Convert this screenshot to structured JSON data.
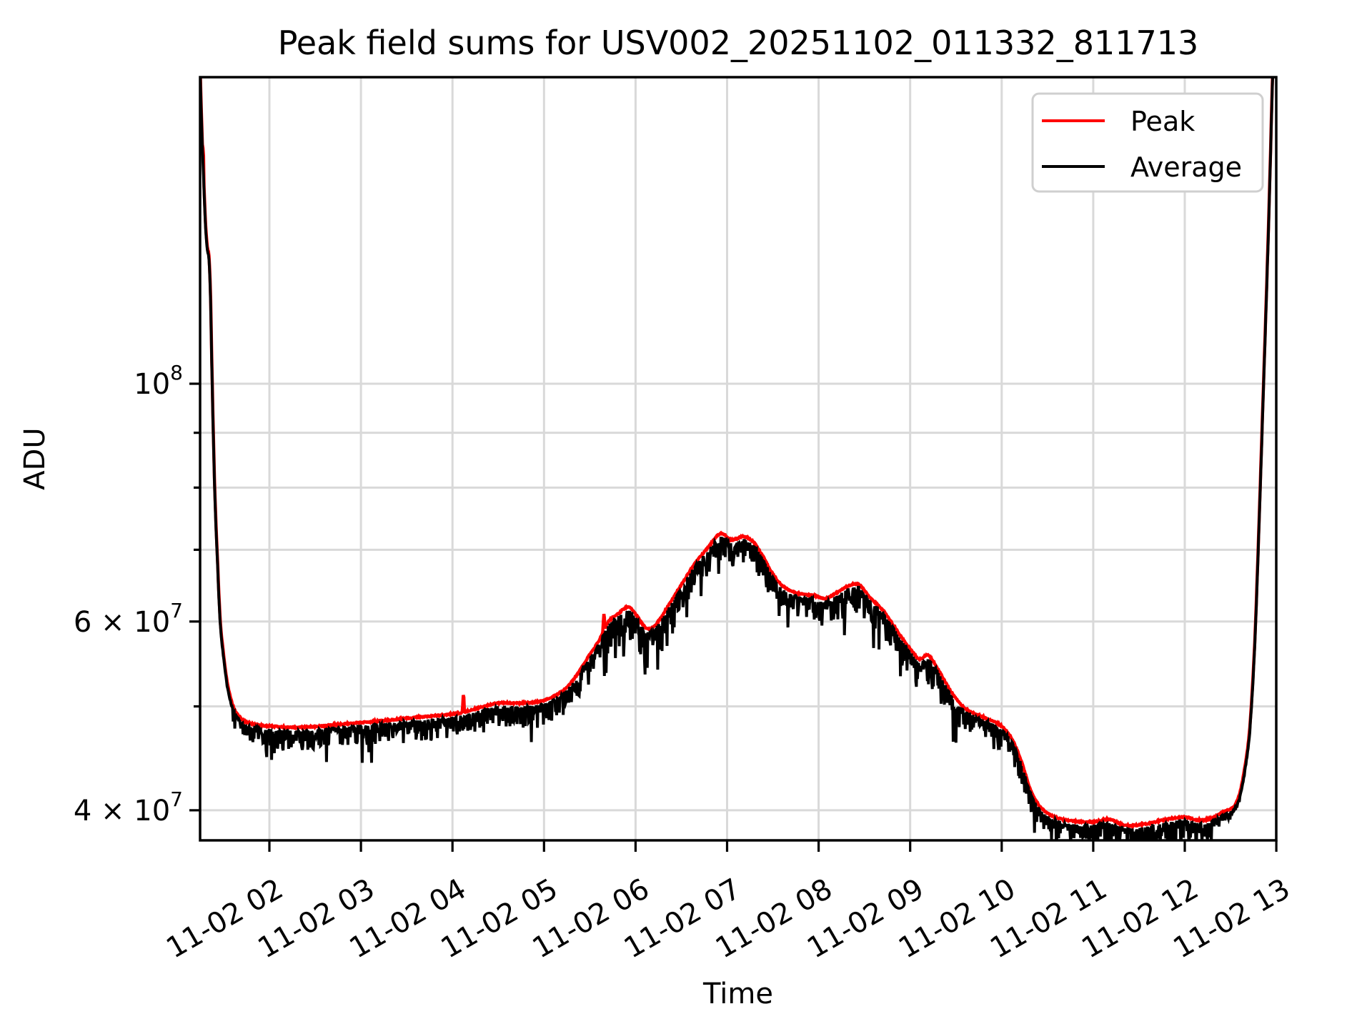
{
  "title": "Peak field sums for USV002_20251102_011332_811713",
  "legend": {
    "items": [
      {
        "label": "Peak",
        "color": "#ff0000"
      },
      {
        "label": "Average",
        "color": "#000000"
      }
    ]
  },
  "chart_data": {
    "type": "line",
    "title": "Peak field sums for USV002_20251102_011332_811713",
    "xlabel": "Time",
    "ylabel": "ADU",
    "yscale": "log",
    "grid": true,
    "legend_position": "upper right",
    "xlim_hours": [
      1.244,
      12.985
    ],
    "ylim": [
      37400000.0,
      193000000.0
    ],
    "x_ticks": [
      {
        "hour": 2,
        "label": "11-02 02"
      },
      {
        "hour": 3,
        "label": "11-02 03"
      },
      {
        "hour": 4,
        "label": "11-02 04"
      },
      {
        "hour": 5,
        "label": "11-02 05"
      },
      {
        "hour": 6,
        "label": "11-02 06"
      },
      {
        "hour": 7,
        "label": "11-02 07"
      },
      {
        "hour": 8,
        "label": "11-02 08"
      },
      {
        "hour": 9,
        "label": "11-02 09"
      },
      {
        "hour": 10,
        "label": "11-02 10"
      },
      {
        "hour": 11,
        "label": "11-02 11"
      },
      {
        "hour": 12,
        "label": "11-02 12"
      },
      {
        "hour": 13,
        "label": "11-02 13"
      }
    ],
    "y_ticks": [
      {
        "value": 100000000.0,
        "mantissa": "10",
        "exp": "8",
        "labeled": true
      },
      {
        "value": 90000000.0,
        "mantissa": "",
        "exp": "",
        "labeled": false
      },
      {
        "value": 80000000.0,
        "mantissa": "",
        "exp": "",
        "labeled": false
      },
      {
        "value": 70000000.0,
        "mantissa": "",
        "exp": "",
        "labeled": false
      },
      {
        "value": 60000000.0,
        "mantissa": "6 × 10",
        "exp": "7",
        "labeled": true
      },
      {
        "value": 50000000.0,
        "mantissa": "",
        "exp": "",
        "labeled": false
      },
      {
        "value": 40000000.0,
        "mantissa": "4 × 10",
        "exp": "7",
        "labeled": true
      }
    ],
    "series": [
      {
        "name": "Peak",
        "color": "#ff0000",
        "role": "envelope_of_average",
        "envelope_factor": 1.0055,
        "spikes": [
          {
            "t": 1.274,
            "value": 166000000.0
          },
          {
            "t": 4.12,
            "value": 51300000.0
          },
          {
            "t": 5.655,
            "value": 61000000.0
          }
        ]
      },
      {
        "name": "Average",
        "color": "#000000",
        "anchors": [
          [
            1.244,
            195000000.0
          ],
          [
            1.262,
            172000000.0
          ],
          [
            1.283,
            154000000.0
          ],
          [
            1.303,
            140000000.0
          ],
          [
            1.322,
            133500000.0
          ],
          [
            1.342,
            130000000.0
          ],
          [
            1.358,
            119000000.0
          ],
          [
            1.372,
            103000000.0
          ],
          [
            1.4,
            81000000.0
          ],
          [
            1.43,
            69000000.0
          ],
          [
            1.462,
            60000000.0
          ],
          [
            1.5,
            55500000.0
          ],
          [
            1.545,
            52000000.0
          ],
          [
            1.6,
            49800000.0
          ],
          [
            1.66,
            48700000.0
          ],
          [
            1.73,
            48100000.0
          ],
          [
            1.85,
            47750000.0
          ],
          [
            2.0,
            47600000.0
          ],
          [
            2.25,
            47450000.0
          ],
          [
            2.5,
            47550000.0
          ],
          [
            2.75,
            47750000.0
          ],
          [
            3.0,
            47950000.0
          ],
          [
            3.3,
            48200000.0
          ],
          [
            3.6,
            48500000.0
          ],
          [
            3.9,
            48750000.0
          ],
          [
            4.1,
            49000000.0
          ],
          [
            4.3,
            49550000.0
          ],
          [
            4.5,
            50000000.0
          ],
          [
            4.7,
            50000000.0
          ],
          [
            4.9,
            50100000.0
          ],
          [
            5.05,
            50500000.0
          ],
          [
            5.2,
            51300000.0
          ],
          [
            5.35,
            53000000.0
          ],
          [
            5.5,
            55500000.0
          ],
          [
            5.6,
            57200000.0
          ],
          [
            5.7,
            59500000.0
          ],
          [
            5.8,
            60500000.0
          ],
          [
            5.93,
            61500000.0
          ],
          [
            6.02,
            60200000.0
          ],
          [
            6.12,
            58700000.0
          ],
          [
            6.22,
            59200000.0
          ],
          [
            6.35,
            61500000.0
          ],
          [
            6.5,
            64500000.0
          ],
          [
            6.65,
            67500000.0
          ],
          [
            6.8,
            70000000.0
          ],
          [
            6.93,
            72000000.0
          ],
          [
            7.05,
            71000000.0
          ],
          [
            7.17,
            71500000.0
          ],
          [
            7.28,
            70800000.0
          ],
          [
            7.38,
            68800000.0
          ],
          [
            7.5,
            66000000.0
          ],
          [
            7.62,
            64200000.0
          ],
          [
            7.78,
            63300000.0
          ],
          [
            7.95,
            63000000.0
          ],
          [
            8.08,
            62600000.0
          ],
          [
            8.2,
            63400000.0
          ],
          [
            8.42,
            64600000.0
          ],
          [
            8.58,
            62500000.0
          ],
          [
            8.72,
            60800000.0
          ],
          [
            8.87,
            58200000.0
          ],
          [
            9.0,
            56200000.0
          ],
          [
            9.1,
            55000000.0
          ],
          [
            9.2,
            55400000.0
          ],
          [
            9.33,
            53300000.0
          ],
          [
            9.45,
            51200000.0
          ],
          [
            9.58,
            49600000.0
          ],
          [
            9.75,
            48700000.0
          ],
          [
            9.93,
            48000000.0
          ],
          [
            10.08,
            46800000.0
          ],
          [
            10.2,
            44500000.0
          ],
          [
            10.33,
            41200000.0
          ],
          [
            10.45,
            39800000.0
          ],
          [
            10.6,
            39100000.0
          ],
          [
            10.8,
            38800000.0
          ],
          [
            11.0,
            38750000.0
          ],
          [
            11.17,
            38950000.0
          ],
          [
            11.35,
            38450000.0
          ],
          [
            11.55,
            38550000.0
          ],
          [
            11.8,
            38950000.0
          ],
          [
            12.0,
            39150000.0
          ],
          [
            12.13,
            38900000.0
          ],
          [
            12.28,
            39000000.0
          ],
          [
            12.42,
            39600000.0
          ],
          [
            12.53,
            40000000.0
          ],
          [
            12.6,
            41200000.0
          ],
          [
            12.66,
            43800000.0
          ],
          [
            12.71,
            47500000.0
          ],
          [
            12.76,
            56000000.0
          ],
          [
            12.8,
            69000000.0
          ],
          [
            12.84,
            88000000.0
          ],
          [
            12.88,
            112000000.0
          ],
          [
            12.92,
            145000000.0
          ],
          [
            12.96,
            195000000.0
          ]
        ],
        "noise": {
          "seed": 1337,
          "comment": "downward hair spikes on Average line, fractional depth per segment",
          "segments": [
            [
              1.244,
              1.6,
              0.004
            ],
            [
              1.6,
              1.95,
              0.035
            ],
            [
              1.95,
              5.3,
              0.045
            ],
            [
              5.3,
              5.55,
              0.055
            ],
            [
              5.55,
              6.45,
              0.075
            ],
            [
              6.45,
              7.6,
              0.05
            ],
            [
              7.6,
              9.6,
              0.055
            ],
            [
              9.6,
              10.45,
              0.04
            ],
            [
              10.45,
              12.3,
              0.045
            ],
            [
              12.3,
              12.5,
              0.02
            ],
            [
              12.5,
              12.985,
              0.005
            ]
          ]
        }
      }
    ]
  },
  "colors": {
    "grid": "#d9d9d9",
    "spine": "#000000",
    "legend_border": "#cfcfcf",
    "background": "#ffffff"
  }
}
